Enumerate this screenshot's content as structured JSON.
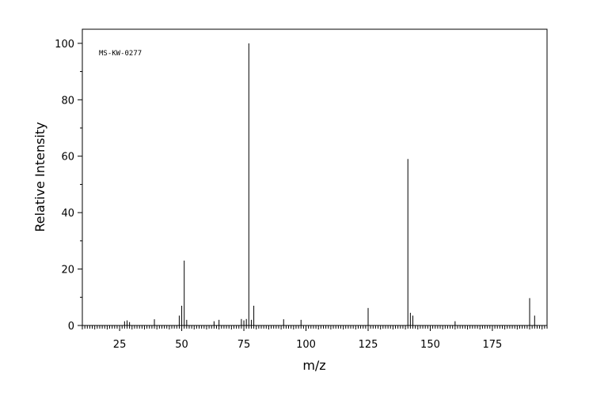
{
  "chart_data": {
    "type": "bar",
    "title": "",
    "xlabel": "m/z",
    "ylabel": "Relative Intensity",
    "xlim": [
      10,
      197
    ],
    "ylim": [
      0,
      105
    ],
    "xticks_major": [
      25,
      50,
      75,
      100,
      125,
      150,
      175
    ],
    "yticks_major": [
      0,
      20,
      40,
      60,
      80,
      100
    ],
    "grid": false,
    "annotations": [
      "MS-KW-0277"
    ],
    "series": [
      {
        "x": [
          27,
          28,
          29,
          39,
          49,
          50,
          51,
          52,
          63,
          65,
          74,
          75,
          76,
          77,
          78,
          79,
          91,
          98,
          125,
          141,
          142,
          143,
          160,
          190,
          192
        ],
        "y": [
          1.5,
          1.8,
          1.2,
          2.2,
          3.5,
          7.0,
          23.0,
          2.0,
          1.5,
          2.0,
          2.3,
          1.8,
          2.3,
          100.0,
          2.0,
          7.0,
          2.2,
          2.0,
          6.2,
          59.0,
          4.5,
          3.5,
          1.5,
          9.7,
          3.5
        ]
      }
    ]
  }
}
